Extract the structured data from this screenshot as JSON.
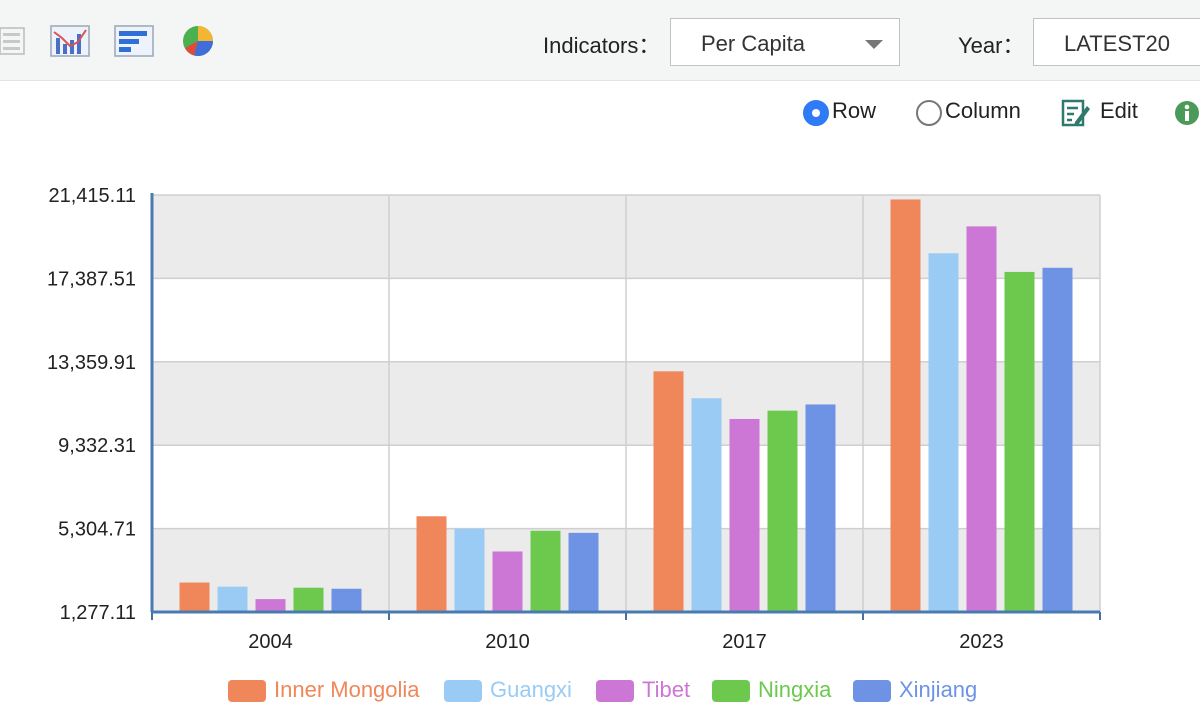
{
  "toolbar": {
    "indicators_label": "Indicators：",
    "indicator_value": "Per Capita",
    "year_label": "Year：",
    "year_value": "LATEST20",
    "view_icons": [
      "list-icon",
      "column-chart-icon",
      "bar-chart-icon",
      "pie-chart-icon"
    ]
  },
  "options": {
    "row_label": "Row",
    "column_label": "Column",
    "selected": "Row",
    "edit_label": "Edit"
  },
  "colors": {
    "accent": "#2f7bf6",
    "info": "#4c9a5a"
  },
  "chart_data": {
    "type": "bar",
    "categories": [
      "2004",
      "2010",
      "2017",
      "2023"
    ],
    "series": [
      {
        "name": "Inner Mongolia",
        "color": "#f0875a",
        "values": [
          2700,
          5900,
          12900,
          21200
        ]
      },
      {
        "name": "Guangxi",
        "color": "#99cbf5",
        "values": [
          2500,
          5300,
          11600,
          18600
        ]
      },
      {
        "name": "Tibet",
        "color": "#cc77d5",
        "values": [
          1900,
          4200,
          10600,
          19900
        ]
      },
      {
        "name": "Ningxia",
        "color": "#6cc94e",
        "values": [
          2450,
          5200,
          11000,
          17700
        ]
      },
      {
        "name": "Xinjiang",
        "color": "#6f93e4",
        "values": [
          2400,
          5100,
          11300,
          17900
        ]
      }
    ],
    "y_ticks": [
      "1,277.11",
      "5,304.71",
      "9,332.31",
      "13,359.91",
      "17,387.51",
      "21,415.11"
    ],
    "ylim": [
      1277.11,
      21415.11
    ],
    "grid": true,
    "legend_position": "bottom"
  }
}
